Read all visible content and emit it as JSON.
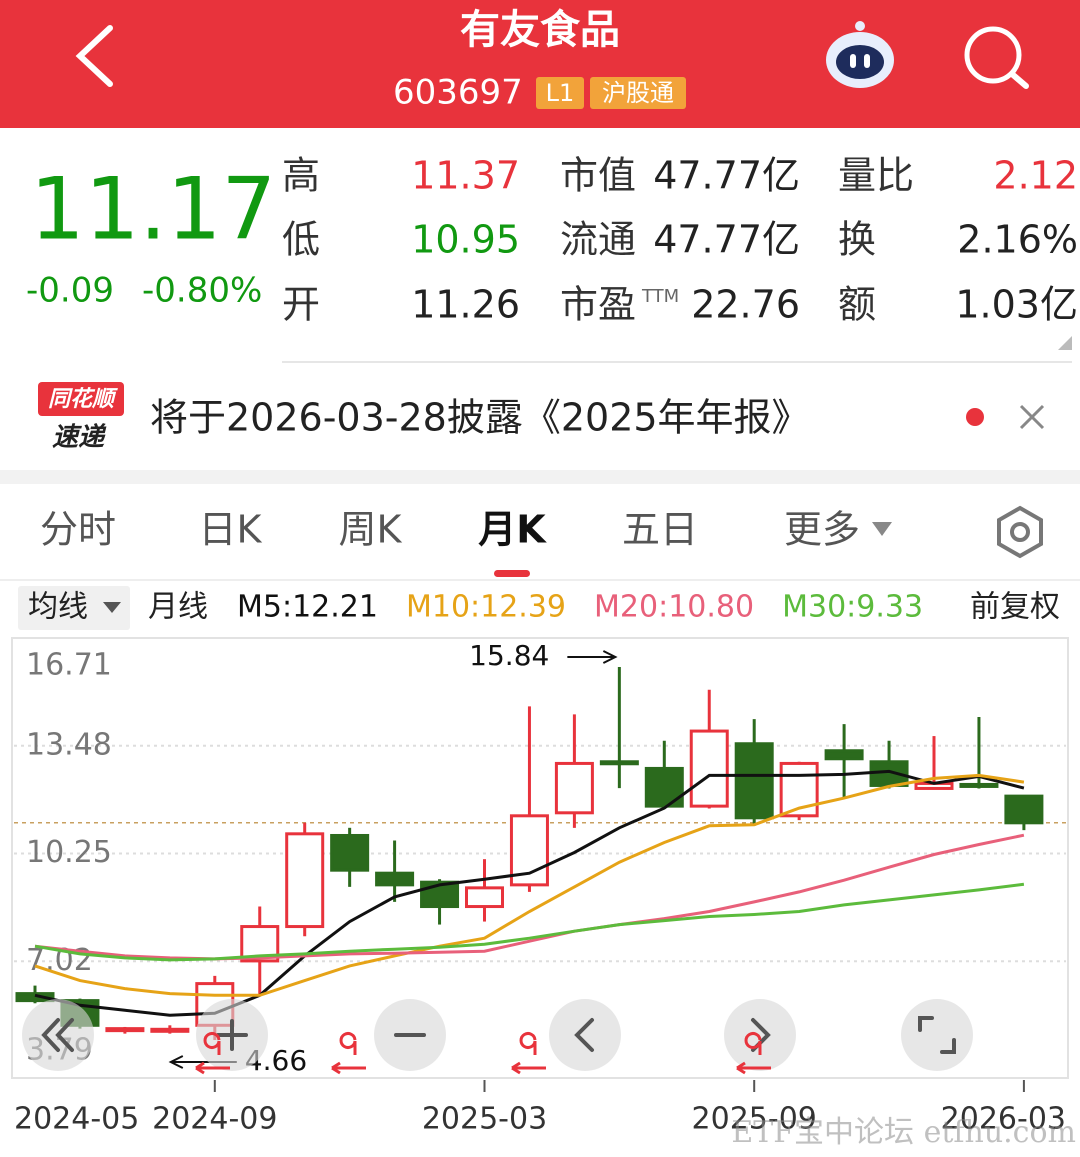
{
  "header": {
    "title": "有友食品",
    "code": "603697",
    "badges": [
      "L1",
      "沪股通"
    ]
  },
  "quote": {
    "price": 11.17,
    "change": -0.09,
    "change_pct": "-0.80%",
    "fields": [
      {
        "label": "高",
        "value": "11.37",
        "color": "#e8333c"
      },
      {
        "label": "低",
        "value": "10.95",
        "color": "#119911"
      },
      {
        "label": "开",
        "value": "11.26",
        "color": "#222222"
      },
      {
        "label": "市值",
        "value": "47.77亿",
        "color": "#222222"
      },
      {
        "label": "流通",
        "value": "47.77亿",
        "color": "#222222"
      },
      {
        "label": "市盈",
        "sup": "TTM",
        "value": "22.76",
        "color": "#222222"
      },
      {
        "label": "量比",
        "value": "2.12",
        "color": "#e8333c"
      },
      {
        "label": "换",
        "value": "2.16%",
        "color": "#222222"
      },
      {
        "label": "额",
        "value": "1.03亿",
        "color": "#222222"
      }
    ]
  },
  "notice": {
    "badge": [
      "同花顺",
      "速递"
    ],
    "text": "将于2026-03-28披露《2025年年报》"
  },
  "tabs": [
    "分时",
    "日K",
    "周K",
    "月K",
    "五日",
    "更多"
  ],
  "active_tab": 3,
  "indicator": {
    "selector": "均线",
    "period": "月线",
    "adjust": "前复权"
  },
  "watermark": "ETF宝中论坛 etfhu.com",
  "chart_data": {
    "type": "candlestick",
    "categories": [
      "2024-05",
      null,
      null,
      null,
      "2024-09",
      null,
      null,
      null,
      null,
      null,
      "2025-03",
      null,
      null,
      null,
      null,
      null,
      "2025-09",
      null,
      null,
      null,
      null,
      null,
      "2026-03"
    ],
    "open": [
      6.05,
      5.84,
      4.95,
      4.95,
      5.1,
      7.03,
      8.06,
      10.79,
      9.66,
      9.39,
      8.66,
      9.31,
      11.47,
      13.0,
      12.8,
      11.67,
      13.54,
      11.38,
      13.33,
      13.0,
      12.2,
      12.32,
      11.97
    ],
    "high": [
      6.29,
      5.9,
      5.05,
      5.1,
      6.58,
      8.66,
      11.17,
      11.02,
      10.64,
      9.48,
      10.08,
      14.66,
      14.42,
      15.84,
      13.63,
      15.16,
      14.28,
      13.0,
      14.13,
      13.63,
      13.77,
      14.34,
      12.0
    ],
    "low": [
      5.76,
      5.0,
      4.85,
      4.85,
      4.66,
      5.99,
      7.77,
      9.25,
      8.8,
      8.12,
      8.21,
      9.1,
      11.02,
      12.21,
      11.6,
      11.6,
      11.08,
      11.25,
      11.91,
      12.2,
      12.2,
      12.2,
      10.95
    ],
    "close": [
      5.84,
      5.1,
      5.0,
      4.98,
      6.35,
      8.06,
      10.84,
      9.75,
      9.31,
      8.66,
      9.22,
      11.38,
      12.95,
      12.97,
      11.67,
      13.92,
      11.32,
      12.95,
      13.09,
      12.29,
      12.35,
      12.29,
      11.17
    ],
    "up_color": "#e8333c",
    "down_color": "#2b6a1d",
    "series": [
      {
        "name": "M5:12.21",
        "color": "#111111",
        "values": [
          6.0,
          5.7,
          5.55,
          5.4,
          5.46,
          6.0,
          7.18,
          8.21,
          8.95,
          9.31,
          9.48,
          9.66,
          10.28,
          11.02,
          11.61,
          12.59,
          12.59,
          12.59,
          12.62,
          12.71,
          12.35,
          12.56,
          12.21
        ]
      },
      {
        "name": "M10:12.39",
        "color": "#e6a317",
        "values": [
          6.88,
          6.44,
          6.2,
          6.05,
          6.0,
          6.0,
          6.44,
          6.88,
          7.18,
          7.47,
          7.71,
          8.51,
          9.25,
          9.99,
          10.58,
          11.08,
          11.11,
          11.61,
          11.91,
          12.26,
          12.5,
          12.59,
          12.39
        ]
      },
      {
        "name": "M20:10.80",
        "color": "#e8607a",
        "values": [
          7.47,
          7.32,
          7.18,
          7.12,
          7.09,
          7.12,
          7.18,
          7.24,
          7.26,
          7.29,
          7.32,
          7.62,
          7.92,
          8.12,
          8.3,
          8.51,
          8.8,
          9.1,
          9.45,
          9.84,
          10.22,
          10.52,
          10.8
        ]
      },
      {
        "name": "M30:9.33",
        "color": "#5cbb3c",
        "values": [
          7.47,
          7.24,
          7.12,
          7.06,
          7.09,
          7.18,
          7.24,
          7.32,
          7.38,
          7.44,
          7.53,
          7.71,
          7.92,
          8.12,
          8.24,
          8.36,
          8.42,
          8.51,
          8.71,
          8.86,
          9.01,
          9.16,
          9.33
        ]
      }
    ],
    "ylim": [
      3.79,
      16.71
    ],
    "yticks": [
      16.71,
      13.48,
      10.25,
      7.02,
      3.79
    ],
    "grid": true,
    "high_mark": 15.84,
    "low_mark": 4.66
  }
}
